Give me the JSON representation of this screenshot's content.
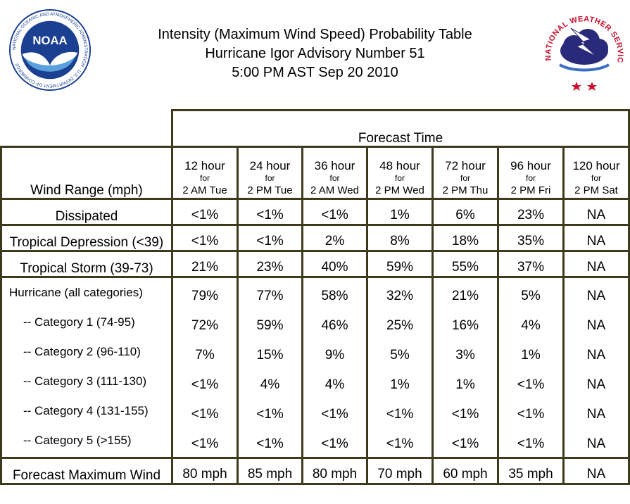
{
  "header": {
    "title_line1": "Intensity (Maximum Wind Speed) Probability Table",
    "title_line2": "Hurricane Igor Advisory Number 51",
    "title_line3": "5:00 PM AST Sep 20 2010",
    "noaa_logo": {
      "text": "NOAA",
      "ring": "NATIONAL OCEANIC AND ATMOSPHERIC ADMINISTRATION · U.S. DEPARTMENT OF COMMERCE",
      "color": "#1b3f91"
    },
    "nws_logo": {
      "ring": "NATIONAL WEATHER SERVICE",
      "color": "#c8102e"
    }
  },
  "table": {
    "forecast_time_label": "Forecast Time",
    "wind_range_label": "Wind Range (mph)",
    "columns": [
      {
        "hours": "12 hour",
        "for": "for",
        "when": "2 AM Tue"
      },
      {
        "hours": "24 hour",
        "for": "for",
        "when": "2 PM Tue"
      },
      {
        "hours": "36 hour",
        "for": "for",
        "when": "2 AM Wed"
      },
      {
        "hours": "48 hour",
        "for": "for",
        "when": "2 PM Wed"
      },
      {
        "hours": "72 hour",
        "for": "for",
        "when": "2 PM Thu"
      },
      {
        "hours": "96 hour",
        "for": "for",
        "when": "2 PM Fri"
      },
      {
        "hours": "120 hour",
        "for": "for",
        "when": "2 PM Sat"
      }
    ],
    "rows": {
      "dissipated": {
        "label": "Dissipated",
        "values": [
          "<1%",
          "<1%",
          "<1%",
          "1%",
          "6%",
          "23%",
          "NA"
        ]
      },
      "td": {
        "label": "Tropical Depression (<39)",
        "values": [
          "<1%",
          "<1%",
          "2%",
          "8%",
          "18%",
          "35%",
          "NA"
        ]
      },
      "ts": {
        "label": "Tropical Storm (39-73)",
        "values": [
          "21%",
          "23%",
          "40%",
          "59%",
          "55%",
          "37%",
          "NA"
        ]
      },
      "hurricane": {
        "labels": [
          "Hurricane (all categories)",
          "-- Category 1 (74-95)",
          "-- Category 2 (96-110)",
          "-- Category 3 (111-130)",
          "-- Category 4 (131-155)",
          "-- Category 5 (>155)"
        ],
        "values": [
          [
            "79%",
            "72%",
            "7%",
            "<1%",
            "<1%",
            "<1%"
          ],
          [
            "77%",
            "59%",
            "15%",
            "4%",
            "<1%",
            "<1%"
          ],
          [
            "58%",
            "46%",
            "9%",
            "4%",
            "<1%",
            "<1%"
          ],
          [
            "32%",
            "25%",
            "5%",
            "1%",
            "<1%",
            "<1%"
          ],
          [
            "21%",
            "16%",
            "3%",
            "1%",
            "<1%",
            "<1%"
          ],
          [
            "5%",
            "4%",
            "1%",
            "<1%",
            "<1%",
            "<1%"
          ],
          [
            "NA",
            "NA",
            "NA",
            "NA",
            "NA",
            "NA"
          ]
        ]
      },
      "maxwind": {
        "label": "Forecast Maximum Wind",
        "values": [
          "80 mph",
          "85 mph",
          "80 mph",
          "70 mph",
          "60 mph",
          "35 mph",
          "NA"
        ]
      }
    }
  }
}
